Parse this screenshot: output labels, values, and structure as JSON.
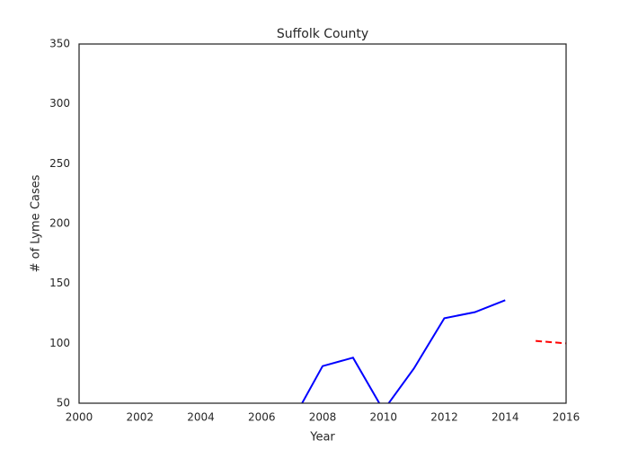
{
  "chart_data": {
    "type": "line",
    "title": "Suffolk County",
    "xlabel": "Year",
    "ylabel": "# of Lyme Cases",
    "series": [
      {
        "color": "#0000ff",
        "dashed": false,
        "x": [
          2007,
          2008,
          2009,
          2010,
          2011,
          2012,
          2013,
          2014
        ],
        "values": [
          35,
          81,
          88,
          44,
          79,
          121,
          126,
          136
        ]
      },
      {
        "color": "#ff0000",
        "dashed": true,
        "x": [
          2015,
          2016
        ],
        "values": [
          102,
          100
        ]
      }
    ],
    "xlim": [
      2000,
      2016
    ],
    "xticks": [
      2000,
      2002,
      2004,
      2006,
      2008,
      2010,
      2012,
      2014,
      2016
    ],
    "ylim": [
      50,
      350
    ],
    "yticks": [
      50,
      100,
      150,
      200,
      250,
      300,
      350
    ],
    "grid": false
  }
}
